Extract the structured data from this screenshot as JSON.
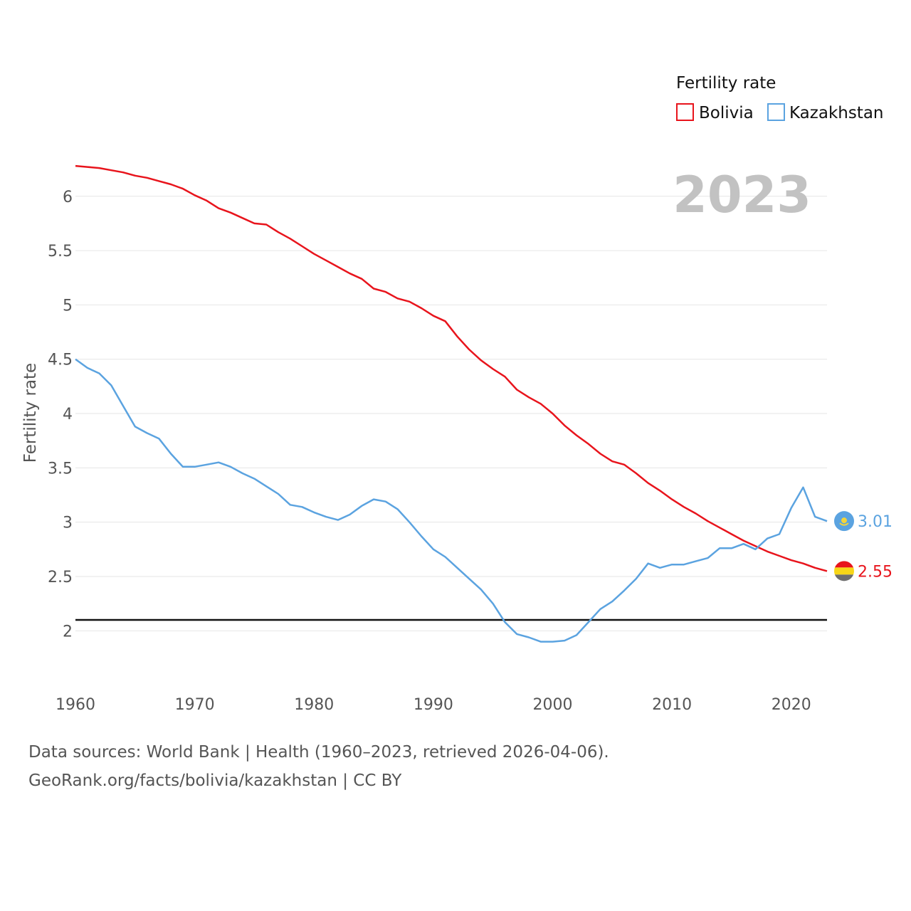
{
  "chart_data": {
    "type": "line",
    "title": "",
    "xlabel": "",
    "ylabel": "Fertility rate",
    "year_label": "2023",
    "xlim": [
      1960,
      2023
    ],
    "ylim": [
      1.55,
      6.3
    ],
    "xticks": [
      1960,
      1970,
      1980,
      1990,
      2000,
      2010,
      2020
    ],
    "yticks": [
      2,
      2.5,
      3,
      3.5,
      4,
      4.5,
      5,
      5.5,
      6
    ],
    "reference_line": 2.1,
    "legend": {
      "title": "Fertility rate",
      "placement": "top-right"
    },
    "x": [
      1960,
      1961,
      1962,
      1963,
      1964,
      1965,
      1966,
      1967,
      1968,
      1969,
      1970,
      1971,
      1972,
      1973,
      1974,
      1975,
      1976,
      1977,
      1978,
      1979,
      1980,
      1981,
      1982,
      1983,
      1984,
      1985,
      1986,
      1987,
      1988,
      1989,
      1990,
      1991,
      1992,
      1993,
      1994,
      1995,
      1996,
      1997,
      1998,
      1999,
      2000,
      2001,
      2002,
      2003,
      2004,
      2005,
      2006,
      2007,
      2008,
      2009,
      2010,
      2011,
      2012,
      2013,
      2014,
      2015,
      2016,
      2017,
      2018,
      2019,
      2020,
      2021,
      2022,
      2023
    ],
    "series": [
      {
        "name": "Bolivia",
        "color": "#e8141c",
        "end_label": "2.55",
        "flag": "bolivia-flag-icon",
        "values": [
          6.28,
          6.27,
          6.26,
          6.24,
          6.22,
          6.19,
          6.17,
          6.14,
          6.11,
          6.07,
          6.01,
          5.96,
          5.89,
          5.85,
          5.8,
          5.75,
          5.74,
          5.67,
          5.61,
          5.54,
          5.47,
          5.41,
          5.35,
          5.29,
          5.24,
          5.15,
          5.12,
          5.06,
          5.03,
          4.97,
          4.9,
          4.85,
          4.71,
          4.59,
          4.49,
          4.41,
          4.34,
          4.22,
          4.15,
          4.09,
          4.0,
          3.89,
          3.8,
          3.72,
          3.63,
          3.56,
          3.53,
          3.45,
          3.36,
          3.29,
          3.21,
          3.14,
          3.08,
          3.01,
          2.95,
          2.89,
          2.83,
          2.78,
          2.73,
          2.69,
          2.65,
          2.62,
          2.58,
          2.55
        ]
      },
      {
        "name": "Kazakhstan",
        "color": "#5ba3e0",
        "end_label": "3.01",
        "flag": "kazakhstan-flag-icon",
        "values": [
          4.5,
          4.42,
          4.37,
          4.26,
          4.07,
          3.88,
          3.82,
          3.77,
          3.63,
          3.51,
          3.51,
          3.53,
          3.55,
          3.51,
          3.45,
          3.4,
          3.33,
          3.26,
          3.16,
          3.14,
          3.09,
          3.05,
          3.02,
          3.07,
          3.15,
          3.21,
          3.19,
          3.12,
          3.0,
          2.87,
          2.75,
          2.68,
          2.58,
          2.48,
          2.38,
          2.25,
          2.08,
          1.97,
          1.94,
          1.9,
          1.9,
          1.91,
          1.96,
          2.08,
          2.2,
          2.27,
          2.37,
          2.48,
          2.62,
          2.58,
          2.61,
          2.61,
          2.64,
          2.67,
          2.76,
          2.76,
          2.8,
          2.75,
          2.85,
          2.89,
          3.13,
          3.32,
          3.05,
          3.01
        ]
      }
    ]
  },
  "footer": {
    "line1": "Data sources: World Bank | Health (1960–2023, retrieved 2026-04-06).",
    "line2": "GeoRank.org/facts/bolivia/kazakhstan | CC BY"
  }
}
